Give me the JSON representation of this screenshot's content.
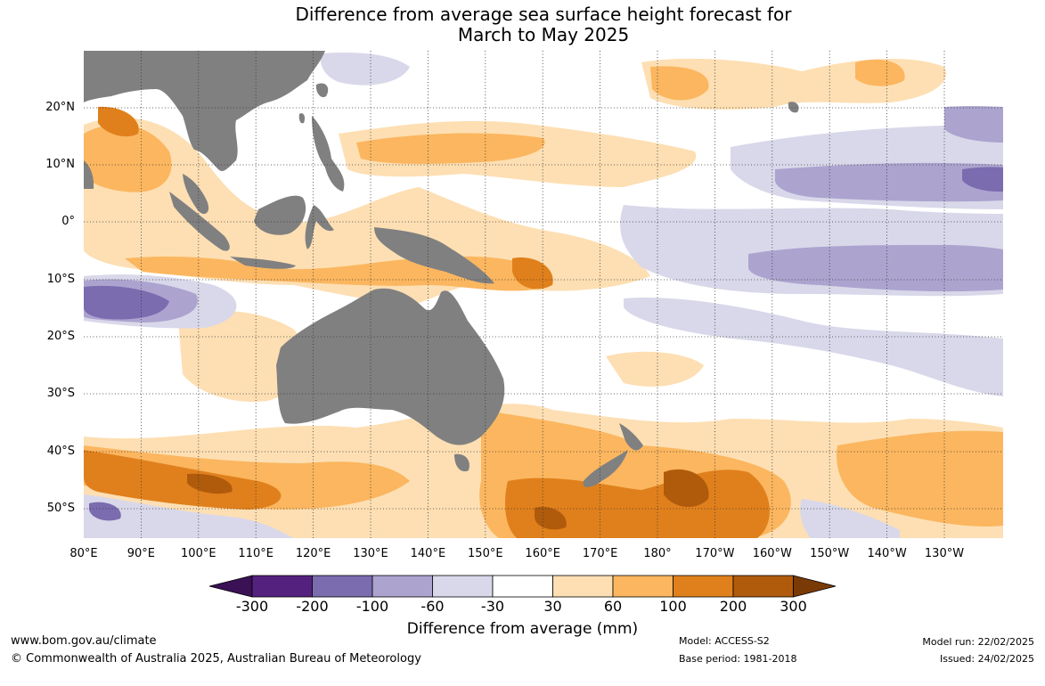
{
  "title": {
    "line1": "Difference from average sea surface height forecast for",
    "line2": "March to May 2025"
  },
  "lat_labels": [
    "20°N",
    "10°N",
    "0°",
    "10°S",
    "20°S",
    "30°S",
    "40°S",
    "50°S"
  ],
  "lon_labels": [
    "80°E",
    "90°E",
    "100°E",
    "110°E",
    "120°E",
    "130°E",
    "140°E",
    "150°E",
    "160°E",
    "170°E",
    "180°",
    "170°W",
    "160°W",
    "150°W",
    "140°W",
    "130°W"
  ],
  "colorbar": {
    "title": "Difference from average (mm)",
    "labels": [
      "-300",
      "-200",
      "-100",
      "-60",
      "-30",
      "30",
      "60",
      "100",
      "200",
      "300"
    ],
    "colors": [
      "#3b1156",
      "#55217f",
      "#7b6baf",
      "#aca4cf",
      "#d9d8ea",
      "#ffffff",
      "#fddfb3",
      "#fbb65f",
      "#e0801c",
      "#b05b0c",
      "#7a3a06"
    ]
  },
  "colors": {
    "land": "#808080",
    "grid": "#333333"
  },
  "footer": {
    "website": "www.bom.gov.au/climate",
    "copyright": "© Commonwealth of Australia 2025, Australian Bureau of Meteorology",
    "model": "Model: ACCESS-S2",
    "base_period": "Base period: 1981-2018",
    "model_run": "Model run: 22/02/2025",
    "issued": "Issued: 24/02/2025"
  }
}
